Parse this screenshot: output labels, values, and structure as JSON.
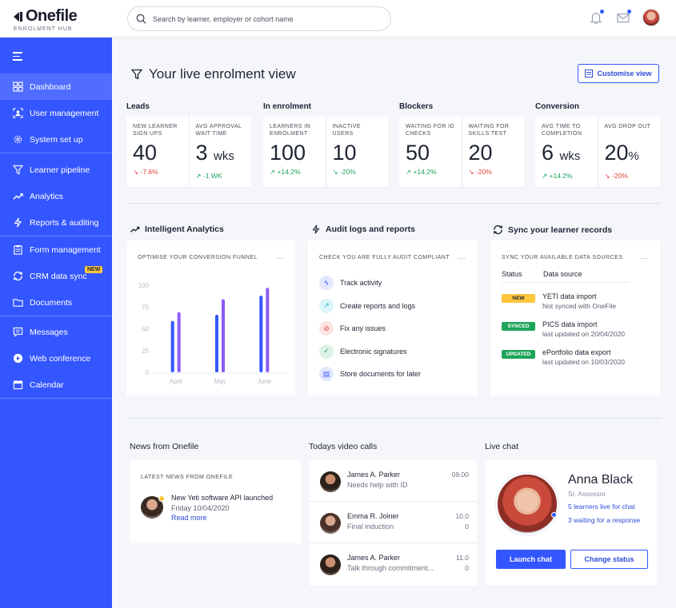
{
  "brand": {
    "name": "Onefile",
    "subtitle": "ENROLMENT HUB"
  },
  "search": {
    "placeholder": "Search by learner, employer or cohort name"
  },
  "sidebar": {
    "items": [
      {
        "label": "Dashboard",
        "icon": "grid-icon"
      },
      {
        "label": "User management",
        "icon": "user-frame-icon"
      },
      {
        "label": "System set up",
        "icon": "gear-icon"
      },
      {
        "label": "Learner pipeline",
        "icon": "funnel-icon"
      },
      {
        "label": "Analytics",
        "icon": "trend-icon"
      },
      {
        "label": "Reports & auditing",
        "icon": "lightning-icon"
      },
      {
        "label": "Form management",
        "icon": "clipboard-icon"
      },
      {
        "label": "CRM data sync",
        "icon": "sync-icon",
        "badge": "NEW"
      },
      {
        "label": "Documents",
        "icon": "folder-icon"
      },
      {
        "label": "Messages",
        "icon": "message-icon"
      },
      {
        "label": "Web conference",
        "icon": "play-icon"
      },
      {
        "label": "Calendar",
        "icon": "calendar-icon"
      }
    ]
  },
  "header": {
    "title": "Your live enrolment view",
    "customise_label": "Customise view"
  },
  "stats": [
    {
      "title": "Leads",
      "cells": [
        {
          "label": "NEW LEARNER SIGN UPS",
          "value": "40",
          "unit": "",
          "delta": "-7.6%",
          "dir": "down"
        },
        {
          "label": "AVG APPROVAL WAIT TIME",
          "value": "3",
          "unit": "wks",
          "delta": "-1 WK",
          "dir": "up"
        }
      ]
    },
    {
      "title": "In enrolment",
      "cells": [
        {
          "label": "LEARNERS IN ENROLMENT",
          "value": "100",
          "unit": "",
          "delta": "+14.2%",
          "dir": "up"
        },
        {
          "label": "INACTIVE USERS",
          "value": "10",
          "unit": "",
          "delta": "-20%",
          "dir": "down"
        }
      ]
    },
    {
      "title": "Blockers",
      "cells": [
        {
          "label": "WAITING FOR ID CHECKS",
          "value": "50",
          "unit": "",
          "delta": "+14.2%",
          "dir": "up"
        },
        {
          "label": "WAITING FOR SKILLS TEST",
          "value": "20",
          "unit": "",
          "delta": "-20%",
          "dir": "down"
        }
      ]
    },
    {
      "title": "Conversion",
      "cells": [
        {
          "label": "AVG TIME TO COMPLETION",
          "value": "6",
          "unit": "wks",
          "delta": "+14.2%",
          "dir": "up"
        },
        {
          "label": "AVG DROP OUT",
          "value": "20",
          "unit": "%",
          "delta": "-20%",
          "dir": "down"
        }
      ]
    }
  ],
  "analytics": {
    "title": "Intelligent Analytics",
    "panel_title": "OPTIMISE YOUR CONVERSION FUNNEL",
    "more": "…"
  },
  "chart_data": {
    "type": "bar",
    "categories": [
      "April",
      "May",
      "June"
    ],
    "series": [
      {
        "values": [
          59,
          66,
          88
        ],
        "color": "#3456ff"
      },
      {
        "values": [
          69,
          84,
          97
        ],
        "color": "#8b5cf6"
      }
    ],
    "yticks": [
      0,
      25,
      50,
      75,
      100
    ],
    "ylim": [
      0,
      100
    ],
    "grid": false
  },
  "audit": {
    "title": "Audit logs and reports",
    "panel_title": "CHECK YOU ARE FULLY AUDIT COMPLIANT",
    "more": "…",
    "items": [
      {
        "label": "Track activity",
        "icon": "lightning-icon",
        "color": "#3456ff",
        "bg": "#e3e8ff",
        "glyph": "ϟ"
      },
      {
        "label": "Create reports and logs",
        "icon": "trend-icon",
        "color": "#1cb5c9",
        "bg": "#dbf5f8",
        "glyph": "↗"
      },
      {
        "label": "Fix any issues",
        "icon": "blocked-icon",
        "color": "#e0413a",
        "bg": "#fde3e2",
        "glyph": "⊘"
      },
      {
        "label": "Electronic signatures",
        "icon": "check-icon",
        "color": "#1ea55b",
        "bg": "#dcf3e6",
        "glyph": "✓"
      },
      {
        "label": "Store documents for later",
        "icon": "document-icon",
        "color": "#3456ff",
        "bg": "#e3e8ff",
        "glyph": "▤"
      }
    ]
  },
  "sync": {
    "title": "Sync your learner records",
    "panel_title": "SYNC YOUR AVAILABLE DATA SOURCES",
    "more": "…",
    "col_status": "Status",
    "col_source": "Data source",
    "rows": [
      {
        "badge": "NEW",
        "badge_color": "#ffc53d",
        "badge_text_color": "#1f2433",
        "source": "YETI data import",
        "sub": "Not synced with OneFile"
      },
      {
        "badge": "SYNCED",
        "badge_color": "#1ea55b",
        "badge_text_color": "#ffffff",
        "source": "PICS data import",
        "sub": "last updated on 20/04/2020"
      },
      {
        "badge": "UPDATED",
        "badge_color": "#1ea55b",
        "badge_text_color": "#ffffff",
        "source": "ePortfolio data export",
        "sub": "last updated on 10/03/2020"
      }
    ]
  },
  "news": {
    "title": "News from Onefile",
    "panel_title": "LATEST NEWS FROM ONEFILE",
    "headline": "New Yeti software API launched",
    "date": "Friday 10/04/2020",
    "link": "Read more"
  },
  "calls": {
    "title": "Todays video calls",
    "items": [
      {
        "name": "James A. Parker",
        "note": "Needs help with ID",
        "time_line1": "09.00",
        "time_line2": ""
      },
      {
        "name": "Emma R. Joiner",
        "note": "Final induction",
        "time_line1": "10.0",
        "time_line2": "0"
      },
      {
        "name": "James A. Parker",
        "note": "Talk through commitment...",
        "time_line1": "11.0",
        "time_line2": "0"
      }
    ]
  },
  "chat": {
    "title": "Live chat",
    "name": "Anna Black",
    "role": "Sr. Assessor",
    "line1": "5 learners live for chat",
    "line2": "3 waiting for a response",
    "launch_label": "Launch chat",
    "status_label": "Change status"
  }
}
